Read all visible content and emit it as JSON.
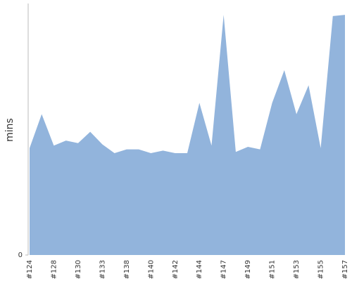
{
  "chart_data": {
    "type": "area",
    "y_label": "mins",
    "categories": [
      "#124",
      null,
      "#128",
      null,
      "#130",
      null,
      "#133",
      null,
      "#138",
      null,
      "#140",
      null,
      "#142",
      null,
      "#144",
      null,
      "#147",
      null,
      "#149",
      null,
      "#151",
      null,
      "#153",
      null,
      "#155",
      null,
      "#157"
    ],
    "values": [
      8.5,
      11.2,
      8.7,
      9.1,
      8.9,
      9.8,
      8.8,
      8.1,
      8.4,
      8.4,
      8.1,
      8.3,
      8.1,
      8.1,
      12.1,
      8.7,
      19.1,
      8.2,
      8.6,
      8.4,
      12.1,
      14.7,
      11.2,
      13.5,
      8.5,
      19.0,
      19.1
    ],
    "color": "#92b4dc",
    "ylim": [
      0,
      20
    ],
    "yticks": [
      0
    ]
  }
}
